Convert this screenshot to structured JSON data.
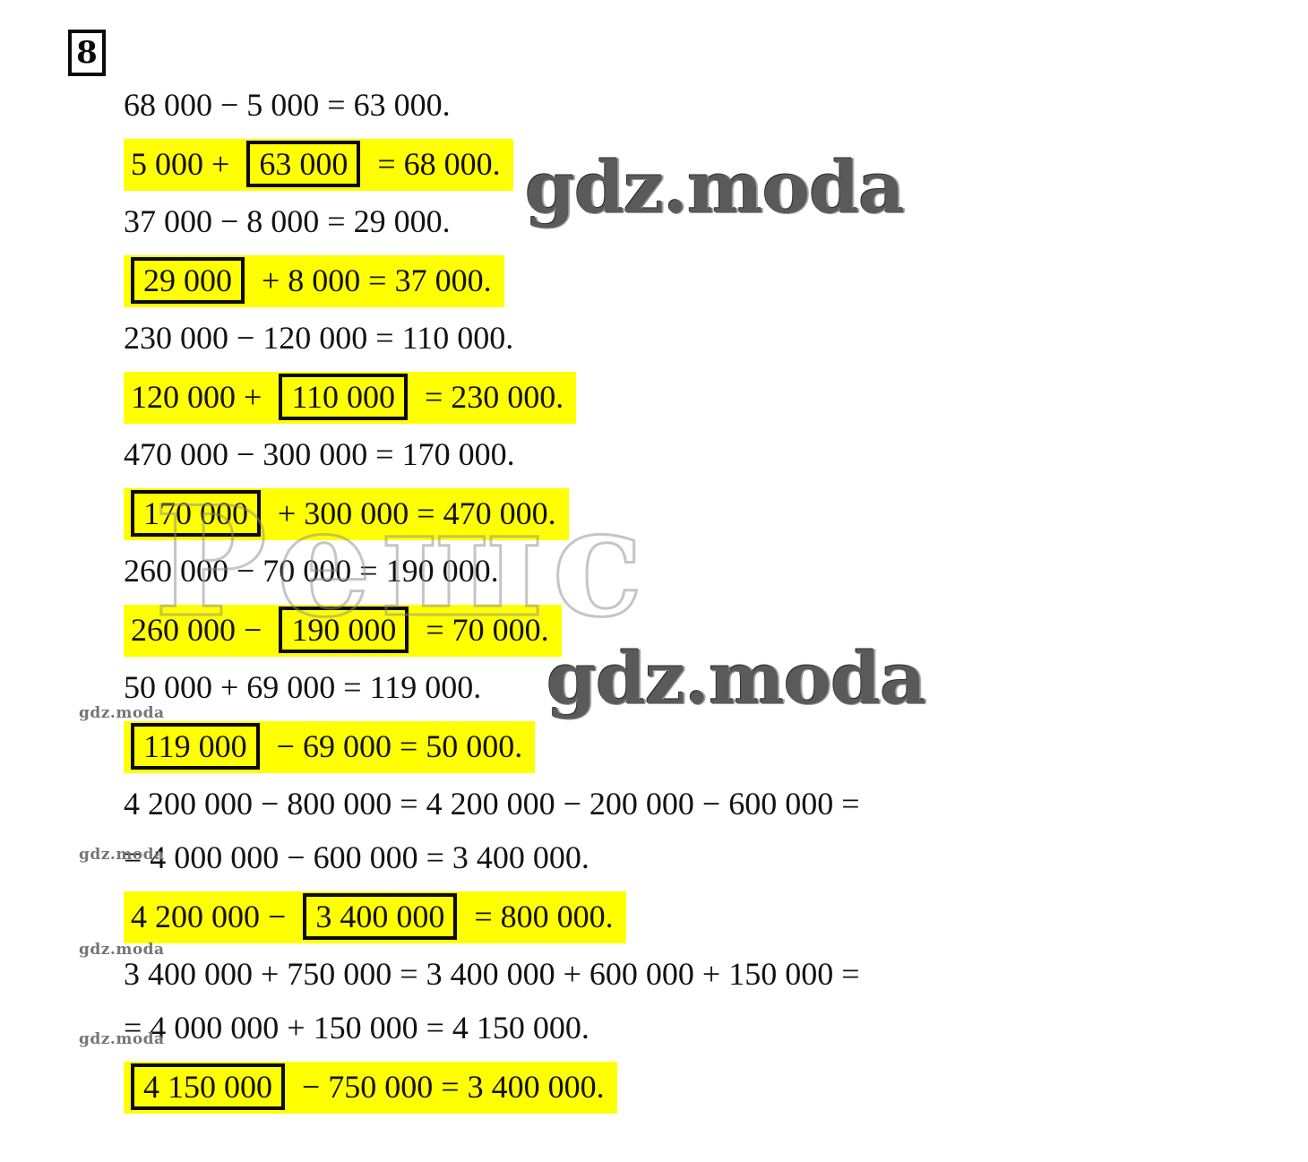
{
  "page_type": "math-solution-worksheet",
  "task": {
    "number": "8"
  },
  "colors": {
    "background": "#ffffff",
    "text": "#121212",
    "highlight": "#ffff00",
    "answer_box_border": "#0a0a0a",
    "watermark_gray": "#5a5a5a",
    "outline_watermark_gray": "#8c8c8c"
  },
  "watermark": {
    "big_text": "gdz.moda",
    "small_text": "gdz.moda",
    "outline_text": "Решс"
  },
  "lines": [
    {
      "type": "plain",
      "text": "68 000 − 5 000 = 63 000."
    },
    {
      "type": "highlight",
      "pre": "5 000 + ",
      "boxed": "63 000",
      "post": " = 68 000."
    },
    {
      "type": "plain",
      "text": "37 000 − 8 000 = 29 000."
    },
    {
      "type": "highlight",
      "pre": "",
      "boxed": "29 000",
      "post": " + 8 000 = 37 000."
    },
    {
      "type": "plain",
      "text": "230 000 − 120 000 = 110 000."
    },
    {
      "type": "highlight",
      "pre": "120 000 + ",
      "boxed": "110 000",
      "post": " = 230 000."
    },
    {
      "type": "plain",
      "text": "470 000 − 300 000 = 170 000."
    },
    {
      "type": "highlight",
      "pre": "",
      "boxed": "170 000",
      "post": " + 300 000 = 470 000."
    },
    {
      "type": "plain",
      "text": "260 000 − 70 000 = 190 000."
    },
    {
      "type": "highlight",
      "pre": "260 000 − ",
      "boxed": "190 000",
      "post": " = 70 000."
    },
    {
      "type": "plain",
      "text": "50 000 + 69 000 = 119 000."
    },
    {
      "type": "highlight",
      "pre": "",
      "boxed": "119 000",
      "post": " − 69 000 = 50 000."
    },
    {
      "type": "plain",
      "text": "4 200 000 − 800 000 = 4 200 000 − 200 000 − 600 000 ="
    },
    {
      "type": "plain",
      "text": "= 4 000 000 − 600 000 = 3 400 000."
    },
    {
      "type": "highlight",
      "pre": "4 200 000 − ",
      "boxed": "3 400 000",
      "post": " = 800 000."
    },
    {
      "type": "plain",
      "text": "3 400 000 + 750 000 = 3 400 000 + 600 000 + 150 000 ="
    },
    {
      "type": "plain",
      "text": "= 4 000 000 + 150 000 = 4 150 000."
    },
    {
      "type": "highlight",
      "pre": "",
      "boxed": "4 150 000",
      "post": " − 750 000 = 3 400 000."
    }
  ]
}
